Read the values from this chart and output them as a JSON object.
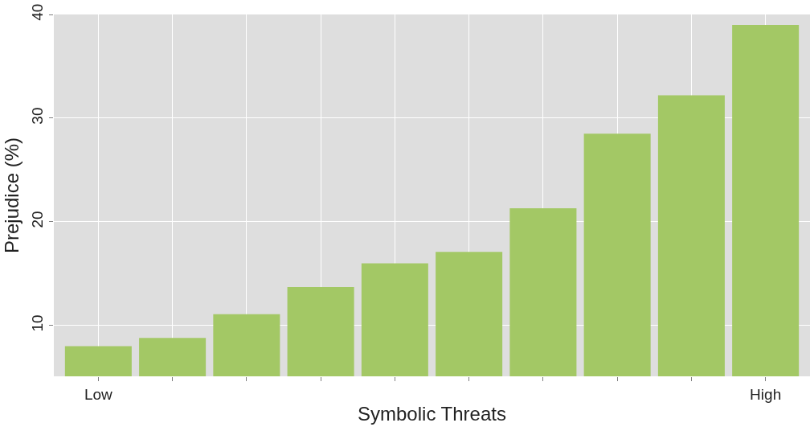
{
  "chart_data": {
    "type": "bar",
    "xlabel": "Symbolic Threats",
    "ylabel": "Prejudice (%)",
    "categories": [
      "Low",
      null,
      null,
      null,
      null,
      null,
      null,
      null,
      null,
      "High"
    ],
    "values": [
      8.0,
      8.8,
      11.1,
      13.7,
      16.0,
      17.1,
      21.3,
      28.5,
      32.2,
      39.0
    ],
    "color": "#a3c865",
    "ylim": [
      5.1,
      40
    ],
    "yticks": [
      10,
      20,
      30,
      40
    ],
    "grid": true
  }
}
